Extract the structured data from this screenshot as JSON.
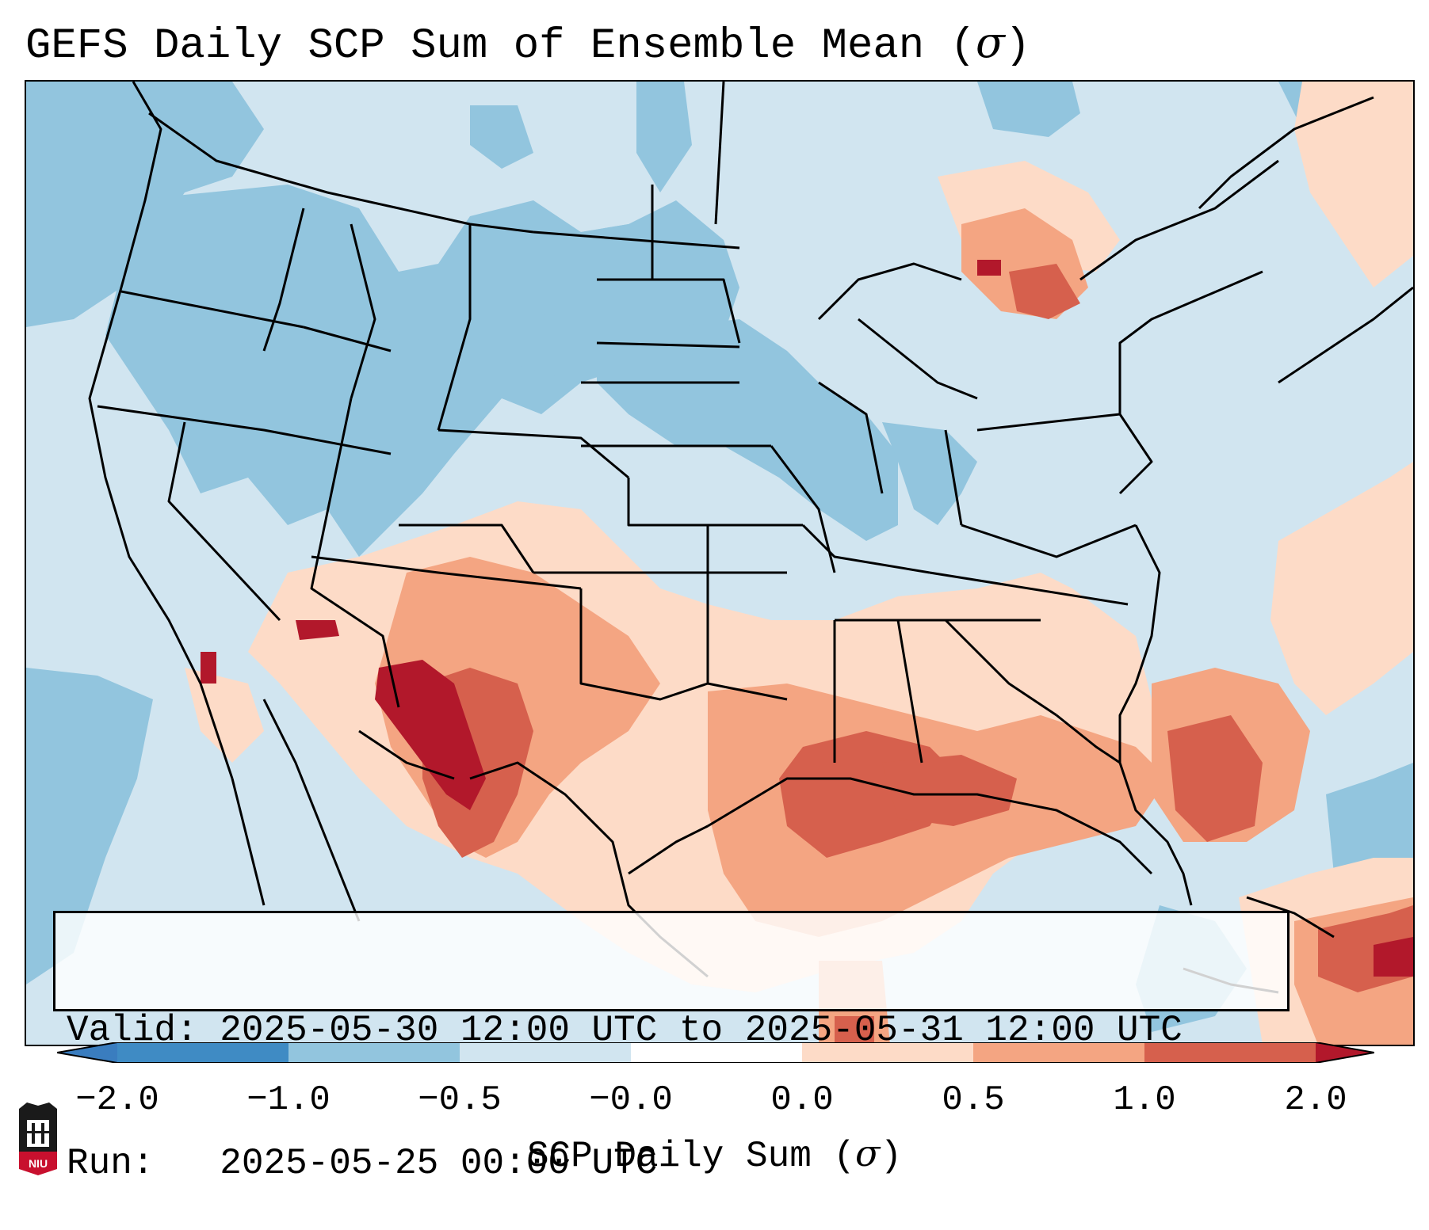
{
  "title": {
    "text": "GEFS Daily SCP Sum of Ensemble Mean (",
    "sigma": "σ",
    "close": ")"
  },
  "info": {
    "valid_label": "Valid:",
    "valid_value": "2025-05-30 12:00 UTC to 2025-05-31 12:00 UTC",
    "run_label": "Run:",
    "run_value": "2025-05-25 00:00 UTC"
  },
  "colorbar": {
    "label_text": "SCP Daily Sum (",
    "label_sigma": "σ",
    "label_close": ")",
    "ticks": [
      "−2.0",
      "−1.0",
      "−0.5",
      "−0.0",
      "0.0",
      "0.5",
      "1.0",
      "2.0"
    ],
    "colors": {
      "extend_low": "#3a7dbf",
      "bin_1": "#3f8bc4",
      "bin_2": "#92c5de",
      "bin_3": "#d1e5f0",
      "bin_4": "#ffffff",
      "bin_5": "#fddbc7",
      "bin_6": "#f4a582",
      "bin_7": "#d6604d",
      "extend_high": "#b2182b"
    }
  },
  "map": {
    "projection": "Lambert Conformal (CONUS)",
    "field": "SCP daily sum anomaly (sigma)"
  },
  "logo": {
    "text": "NIU"
  }
}
